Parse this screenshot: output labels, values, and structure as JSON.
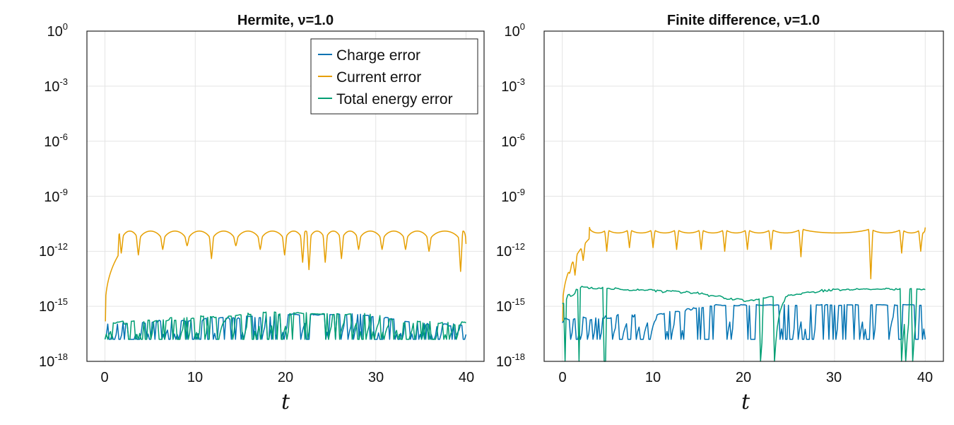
{
  "chart_data": [
    {
      "type": "line",
      "title": "Hermite, ν=1.0",
      "xlabel": "t",
      "ylabel": "",
      "yscale": "log10",
      "xlim": [
        -2,
        42
      ],
      "ylim": [
        1e-18,
        1
      ],
      "xticks": [
        0,
        10,
        20,
        30,
        40
      ],
      "xtick_labels": [
        "0",
        "10",
        "20",
        "30",
        "40"
      ],
      "yticks": [
        0,
        -3,
        -6,
        -9,
        -12,
        -15,
        -18
      ],
      "ytick_labels": [
        {
          "base": "10",
          "exp": "0"
        },
        {
          "base": "10",
          "exp": "-3"
        },
        {
          "base": "10",
          "exp": "-6"
        },
        {
          "base": "10",
          "exp": "-9"
        },
        {
          "base": "10",
          "exp": "-12"
        },
        {
          "base": "10",
          "exp": "-15"
        },
        {
          "base": "10",
          "exp": "-18"
        }
      ],
      "grid": true,
      "legend": {
        "position": "top-right",
        "entries": [
          "Charge error",
          "Current error",
          "Total energy error"
        ]
      },
      "series": [
        {
          "name": "Charge error",
          "color": "#0072B2",
          "x_range": [
            0,
            40
          ],
          "log10_values": {
            "segments": [
              [
                0,
                -16.8,
                -15.9
              ],
              [
                20,
                -16.0,
                -15.4
              ],
              [
                28,
                -15.6,
                -15.4
              ],
              [
                36,
                -16.8,
                -15.9
              ]
            ],
            "drop_frequency": 0.35,
            "drop_floor": -16.8
          }
        },
        {
          "name": "Current error",
          "color": "#E69F00",
          "x_range": [
            0,
            40
          ],
          "log10_values": {
            "start": -15.8,
            "rise_end": 1.5,
            "plateau_at_rise": -12.2,
            "dip_times": [
              1.8,
              3.7,
              6.4,
              9.1,
              11.8,
              14.5,
              17.2,
              19.9,
              21.9,
              22.6,
              24.4,
              26.2,
              28.1,
              30.7,
              33.3,
              35.9,
              39.4
            ],
            "dip_depths": [
              -12.1,
              -12.2,
              -11.9,
              -11.7,
              -12.4,
              -11.7,
              -11.9,
              -12.2,
              -12.6,
              -13.0,
              -12.6,
              -12.4,
              -11.9,
              -11.9,
              -11.9,
              -12.0,
              -13.1
            ],
            "peak": -10.9
          }
        },
        {
          "name": "Total energy error",
          "color": "#009E73",
          "x_range": [
            0,
            40
          ],
          "log10_values": {
            "segments": [
              [
                0,
                -16.8,
                -15.8
              ],
              [
                18,
                -15.9,
                -15.3
              ],
              [
                30,
                -15.7,
                -15.4
              ],
              [
                33,
                -16.8,
                -15.8
              ]
            ],
            "drop_frequency": 0.3,
            "drop_floor": -16.8
          }
        }
      ]
    },
    {
      "type": "line",
      "title": "Finite difference, ν=1.0",
      "xlabel": "t",
      "ylabel": "",
      "yscale": "log10",
      "xlim": [
        -2,
        42
      ],
      "ylim": [
        1e-18,
        1
      ],
      "xticks": [
        0,
        10,
        20,
        30,
        40
      ],
      "xtick_labels": [
        "0",
        "10",
        "20",
        "30",
        "40"
      ],
      "yticks": [
        0,
        -3,
        -6,
        -9,
        -12,
        -15,
        -18
      ],
      "ytick_labels": [
        {
          "base": "10",
          "exp": "0"
        },
        {
          "base": "10",
          "exp": "-3"
        },
        {
          "base": "10",
          "exp": "-6"
        },
        {
          "base": "10",
          "exp": "-9"
        },
        {
          "base": "10",
          "exp": "-12"
        },
        {
          "base": "10",
          "exp": "-15"
        },
        {
          "base": "10",
          "exp": "-18"
        }
      ],
      "grid": true,
      "series": [
        {
          "name": "Charge error",
          "color": "#0072B2",
          "x_range": [
            0,
            40
          ],
          "log10_values": {
            "segments": [
              [
                0,
                -16.8,
                -15.6
              ],
              [
                11,
                -16.0,
                -15.3
              ],
              [
                17,
                -15.2,
                -14.9
              ],
              [
                40,
                -15.1,
                -14.9
              ]
            ],
            "drop_frequency": 0.25,
            "drop_floor": -16.8
          }
        },
        {
          "name": "Current error",
          "color": "#E69F00",
          "x_range": [
            0,
            40
          ],
          "log10_values": {
            "start": -15.8,
            "rise_end": 3.0,
            "plateau_at_rise": -11.3,
            "dip_times": [
              0.8,
              1.4,
              2.3,
              4.9,
              7.4,
              10.0,
              12.6,
              15.3,
              17.9,
              20.4,
              23.0,
              26.3,
              34.0,
              37.4,
              39.5
            ],
            "dip_depths": [
              -13.2,
              -13.3,
              -12.5,
              -12.0,
              -11.8,
              -11.8,
              -11.9,
              -11.9,
              -12.0,
              -11.9,
              -11.9,
              -12.3,
              -13.5,
              -12.1,
              -12.0
            ],
            "peak": -11.0
          }
        },
        {
          "name": "Total energy error",
          "color": "#009E73",
          "x_range": [
            0,
            40
          ],
          "log10_values": {
            "segments": [
              [
                0,
                -16.5,
                -14.5
              ],
              [
                2,
                -14.4,
                -13.9
              ],
              [
                15,
                -14.9,
                -14.2
              ],
              [
                20,
                -15.3,
                -14.6
              ],
              [
                30,
                -14.6,
                -14.0
              ],
              [
                40,
                -14.4,
                -14.0
              ]
            ],
            "deep_drops": [
              0.3,
              1.8,
              4.7,
              21.8,
              23.4,
              37.4,
              37.9,
              38.6
            ],
            "drop_floor": -18.0
          }
        }
      ]
    }
  ]
}
